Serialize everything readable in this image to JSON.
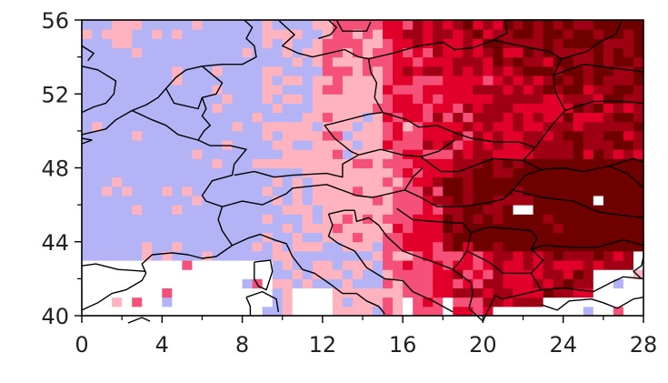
{
  "chart_data": {
    "type": "heatmap",
    "title": "",
    "xlabel": "",
    "ylabel": "",
    "xlim": [
      0,
      28
    ],
    "ylim": [
      40,
      56
    ],
    "x_ticks": [
      "0",
      "4",
      "8",
      "12",
      "16",
      "20",
      "24",
      "28"
    ],
    "y_ticks": [
      "40",
      "44",
      "48",
      "52",
      "56"
    ],
    "grid_resolution_deg": 0.5,
    "grid_cols": 56,
    "grid_rows": 32,
    "legend": "none",
    "colors": {
      "low": "#b3b3f5",
      "mid_low": "#ffb3bf",
      "mid": "#f55078",
      "high": "#e0002a",
      "very_high": "#a00014",
      "extreme": "#6e0000",
      "no_data": "#ffffff",
      "coastline": "#000000"
    },
    "regions": {
      "west_low_edge_lon": 10,
      "mid_low_band": [
        10,
        16
      ],
      "high_gradient_start_lon": 16,
      "extreme_core": {
        "lon": [
          18,
          28
        ],
        "lat": [
          43.5,
          48.5
        ]
      },
      "no_data_areas": [
        "Mediterranean Sea south of 43N west of 12E",
        "Black Sea east of 26E south of 43N"
      ]
    }
  }
}
